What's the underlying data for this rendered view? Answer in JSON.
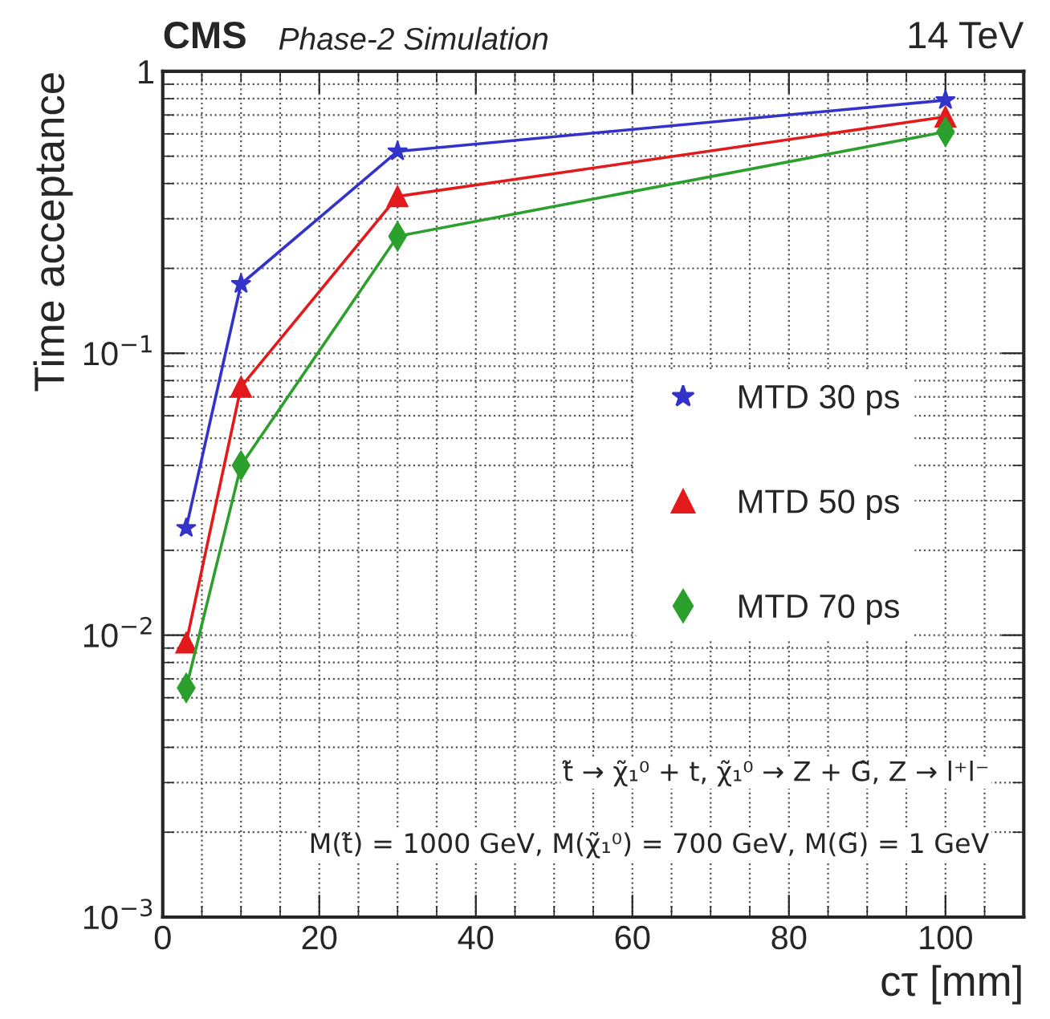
{
  "chart_data": {
    "type": "line",
    "title": "CMS",
    "subtitle": "Phase-2 Simulation",
    "xlabel": "cτ [mm]",
    "ylabel": "Time acceptance",
    "x": [
      3,
      10,
      30,
      100
    ],
    "series": [
      {
        "name": "MTD 30 ps",
        "color": "#3333cc",
        "marker": "star",
        "values": [
          0.024,
          0.176,
          0.52,
          0.79
        ]
      },
      {
        "name": "MTD 50 ps",
        "color": "#e31a1c",
        "marker": "triangle",
        "values": [
          0.0094,
          0.076,
          0.36,
          0.69
        ]
      },
      {
        "name": "MTD 70 ps",
        "color": "#2ca02c",
        "marker": "diamond",
        "values": [
          0.0065,
          0.04,
          0.26,
          0.61
        ]
      }
    ],
    "xlim": [
      0,
      110
    ],
    "xticks": [
      0,
      20,
      40,
      60,
      80,
      100
    ],
    "ylim": [
      0.001,
      1
    ],
    "yticks": [
      {
        "value": 0.001,
        "label": "10$^{−3}$"
      },
      {
        "value": 0.01,
        "label": "10$^{−2}$"
      },
      {
        "value": 0.1,
        "label": "10$^{−1}$"
      },
      1
    ],
    "log": "y",
    "grid": true,
    "legend": "right",
    "line_style": "solid",
    "annotations": [
      "14 TeV",
      "t̃ → χ̃₁⁰ + t, χ̃₁⁰ → Z + G̃, Z → l⁺l⁻",
      "M(t̃) = 1000 GeV, M(χ̃₁⁰) = 700 GeV, M(G̃) = 1 GeV"
    ]
  }
}
